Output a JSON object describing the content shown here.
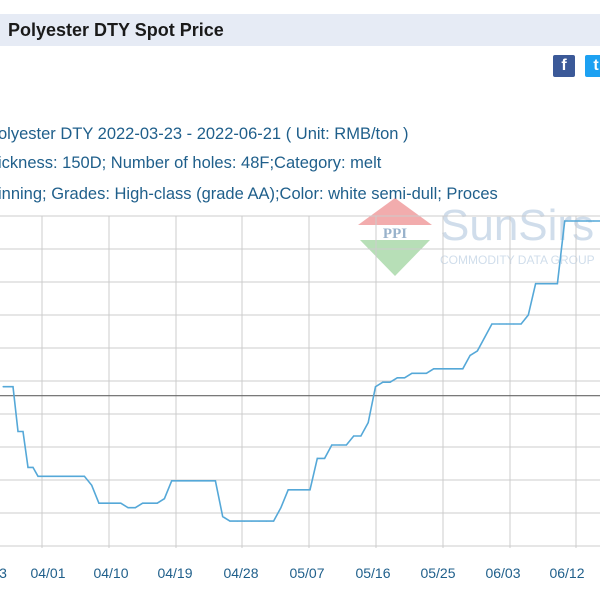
{
  "page": {
    "title": "Polyester DTY Spot Price"
  },
  "share": {
    "facebook": "f",
    "twitter": "t"
  },
  "chart_data": {
    "type": "line",
    "title": "olyester DTY 2022-03-23 - 2022-06-21     ( Unit: RMB/ton )",
    "spec_line_1": "ickness: 150D; Number of holes: 48F;Category: melt",
    "spec_line_2": "inning; Grades: High-class (grade AA);Color: white semi-dull; Proces",
    "x_tick_labels": [
      "3",
      "04/01",
      "04/10",
      "04/19",
      "04/28",
      "05/07",
      "05/16",
      "05/25",
      "06/03",
      "06/12"
    ],
    "x_range": [
      "03/23",
      "06/21"
    ],
    "grid": true,
    "watermark": {
      "brand": "SunSirs",
      "badge": "PPI",
      "tagline": "COMMODITY DATA GROUP",
      "colors": [
        "#e8686a",
        "#7cc47c",
        "#c8d8e8"
      ]
    },
    "colors": {
      "line": "#55a8d8",
      "grid": "#cccccc",
      "baseline": "#666666"
    },
    "series": [
      {
        "x": [
          "03/23",
          "03/24",
          "03/25",
          "03/26",
          "03/27",
          "03/28",
          "03/29",
          "03/30",
          "03/31",
          "04/01",
          "04/02",
          "04/03",
          "04/04",
          "04/05",
          "04/06",
          "04/07",
          "04/08",
          "04/09",
          "04/10",
          "04/11",
          "04/12",
          "04/13",
          "04/14",
          "04/15",
          "04/16",
          "04/17",
          "04/18",
          "04/19",
          "04/20",
          "04/21",
          "04/22",
          "04/23",
          "04/24",
          "04/25",
          "04/26",
          "04/27",
          "04/28",
          "04/29",
          "04/30",
          "05/01",
          "05/02",
          "05/03",
          "05/04",
          "05/05",
          "05/06",
          "05/07",
          "05/08",
          "05/09",
          "05/10",
          "05/11",
          "05/12",
          "05/13",
          "05/14",
          "05/15",
          "05/16",
          "05/17",
          "05/18",
          "05/19",
          "05/20",
          "05/21",
          "05/22",
          "05/23",
          "05/24",
          "05/25",
          "05/26",
          "05/27",
          "05/28",
          "05/29",
          "05/30",
          "05/31",
          "06/01",
          "06/02",
          "06/03",
          "06/04",
          "06/05",
          "06/06",
          "06/07",
          "06/08",
          "06/09",
          "06/10",
          "06/11",
          "06/12",
          "06/13",
          "06/14",
          "06/15",
          "06/16",
          "06/17",
          "06/18",
          "06/19",
          "06/20",
          "06/21"
        ],
        "values": [
          100.2,
          100.2,
          100.2,
          99.2,
          99.2,
          98.4,
          98.4,
          98.2,
          98.2,
          98.2,
          98.2,
          98.2,
          98.2,
          98.2,
          98.2,
          98.0,
          97.6,
          97.6,
          97.6,
          97.6,
          97.5,
          97.5,
          97.6,
          97.6,
          97.6,
          97.7,
          98.1,
          98.1,
          98.1,
          98.1,
          98.1,
          98.1,
          98.1,
          97.3,
          97.2,
          97.2,
          97.2,
          97.2,
          97.2,
          97.2,
          97.2,
          97.5,
          97.9,
          97.9,
          97.9,
          97.9,
          98.6,
          98.6,
          98.9,
          98.9,
          98.9,
          99.1,
          99.1,
          99.4,
          100.2,
          100.3,
          100.3,
          100.4,
          100.4,
          100.5,
          100.5,
          100.5,
          100.6,
          100.6,
          100.6,
          100.6,
          100.6,
          100.9,
          101.0,
          101.3,
          101.6,
          101.6,
          101.6,
          101.6,
          101.6,
          101.8,
          102.5,
          102.5,
          102.5,
          102.5,
          103.9,
          103.9,
          103.9,
          103.9,
          103.9,
          103.9,
          103.9,
          103.9,
          103.9,
          103.9,
          103.9
        ]
      }
    ],
    "ylim": [
      96.6,
      104.1
    ],
    "baseline_value": 100
  }
}
